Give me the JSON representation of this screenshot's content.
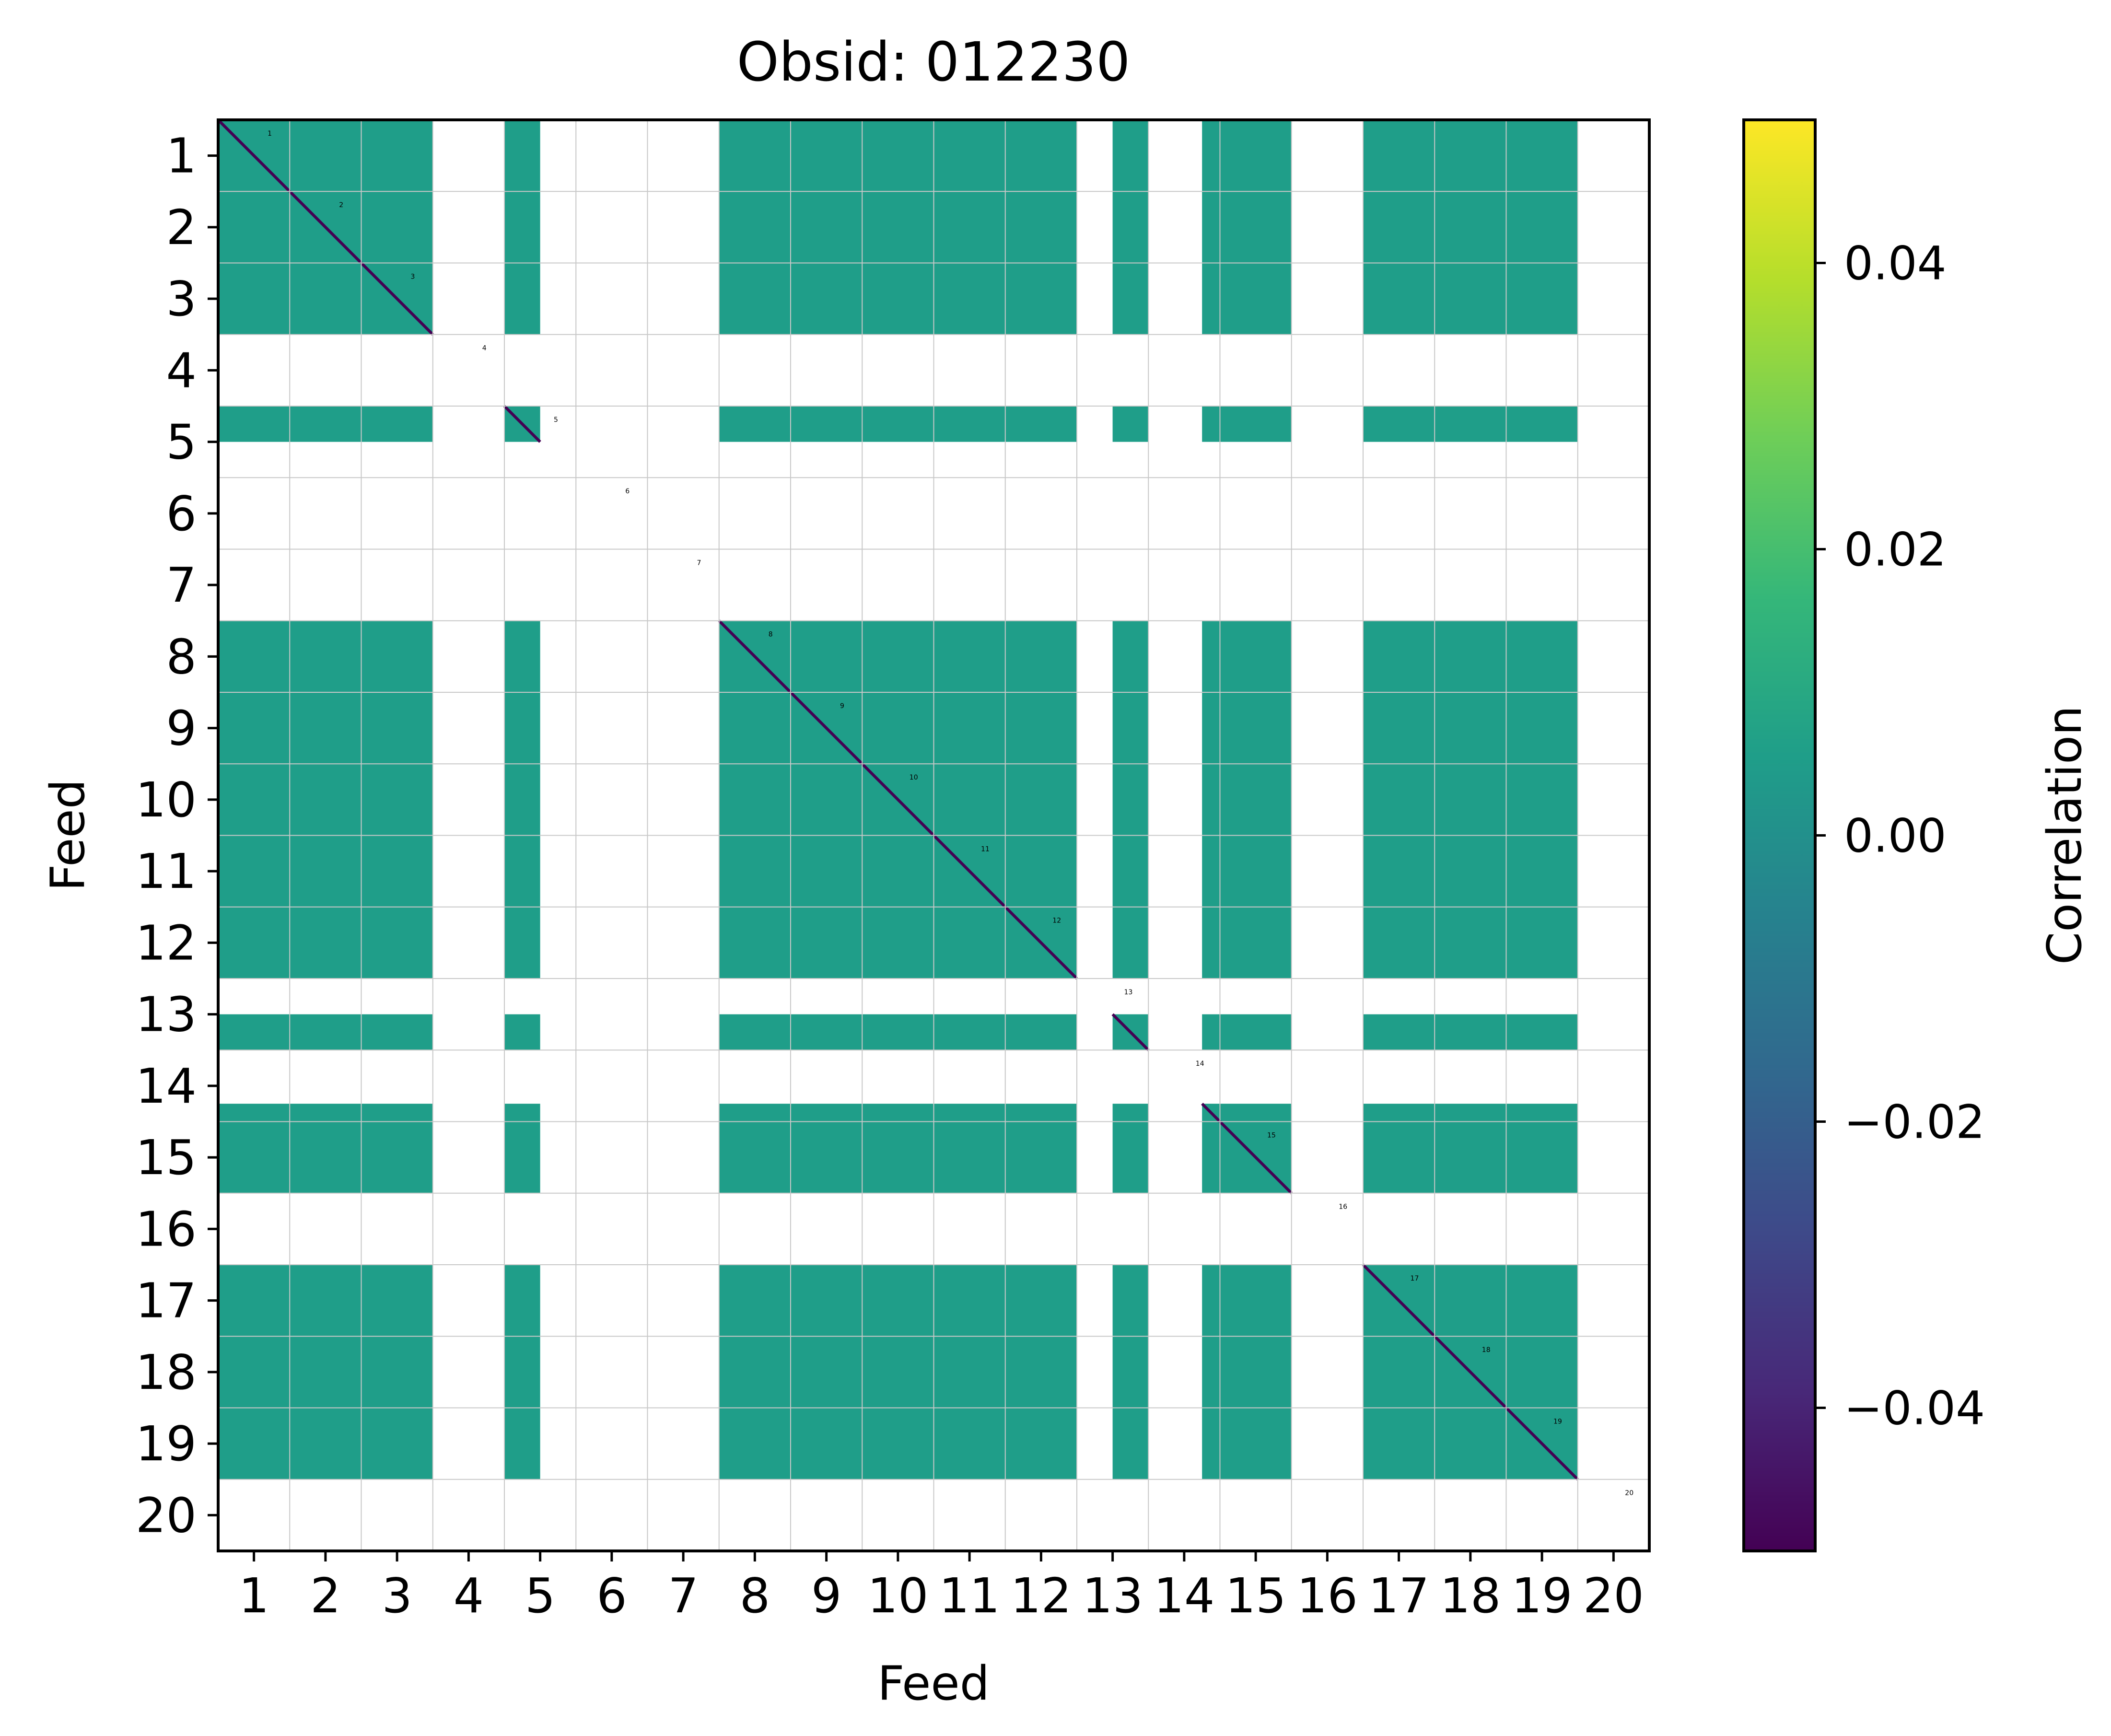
{
  "chart_data": {
    "type": "heatmap",
    "title": "Obsid: 012230",
    "xlabel": "Feed",
    "ylabel": "Feed",
    "x_tick_labels": [
      "1",
      "2",
      "3",
      "4",
      "5",
      "6",
      "7",
      "8",
      "9",
      "10",
      "11",
      "12",
      "13",
      "14",
      "15",
      "16",
      "17",
      "18",
      "19",
      "20"
    ],
    "y_tick_labels": [
      "1",
      "2",
      "3",
      "4",
      "5",
      "6",
      "7",
      "8",
      "9",
      "10",
      "11",
      "12",
      "13",
      "14",
      "15",
      "16",
      "17",
      "18",
      "19",
      "20"
    ],
    "feeds": [
      1,
      2,
      3,
      4,
      5,
      6,
      7,
      8,
      9,
      10,
      11,
      12,
      13,
      14,
      15,
      16,
      17,
      18,
      19,
      20
    ],
    "feed_markers": [
      "1",
      "2",
      "3",
      "4",
      "5",
      "6",
      "7",
      "8",
      "9",
      "10",
      "11",
      "12",
      "13",
      "14",
      "15",
      "16",
      "17",
      "18",
      "19",
      "20"
    ],
    "valid_bands": [
      {
        "feed": 1,
        "from": 0.0,
        "to": 1.0
      },
      {
        "feed": 2,
        "from": 0.0,
        "to": 1.0
      },
      {
        "feed": 3,
        "from": 0.0,
        "to": 1.0
      },
      {
        "feed": 5,
        "from": 0.0,
        "to": 0.5
      },
      {
        "feed": 8,
        "from": 0.0,
        "to": 1.0
      },
      {
        "feed": 9,
        "from": 0.0,
        "to": 1.0
      },
      {
        "feed": 10,
        "from": 0.0,
        "to": 1.0
      },
      {
        "feed": 11,
        "from": 0.0,
        "to": 1.0
      },
      {
        "feed": 12,
        "from": 0.0,
        "to": 1.0
      },
      {
        "feed": 13,
        "from": 0.5,
        "to": 1.0
      },
      {
        "feed": 14,
        "from": 0.75,
        "to": 1.0
      },
      {
        "feed": 15,
        "from": 0.0,
        "to": 1.0
      },
      {
        "feed": 17,
        "from": 0.0,
        "to": 1.0
      },
      {
        "feed": 18,
        "from": 0.0,
        "to": 1.0
      },
      {
        "feed": 19,
        "from": 0.0,
        "to": 1.0
      }
    ],
    "off_diagonal_value": 0.0,
    "diagonal_value": -0.05,
    "masked_cells": "white (NaN)",
    "colorbar": {
      "label": "Correlation",
      "vmin": -0.05,
      "vmax": 0.05,
      "colormap": "viridis",
      "ticks": [
        -0.04,
        -0.02,
        0.0,
        0.02,
        0.04
      ],
      "tick_labels": [
        "−0.04",
        "−0.02",
        "0.00",
        "0.02",
        "0.04"
      ]
    },
    "grid": true
  },
  "colors": {
    "teal": "#21918c",
    "diagonal": "#440154",
    "grid": "#c8c8c8",
    "axis": "#000000",
    "viridis": [
      "#440154",
      "#482878",
      "#3e4989",
      "#31688e",
      "#26828e",
      "#1f9e89",
      "#35b779",
      "#6ece58",
      "#b5de2b",
      "#fde725"
    ]
  }
}
